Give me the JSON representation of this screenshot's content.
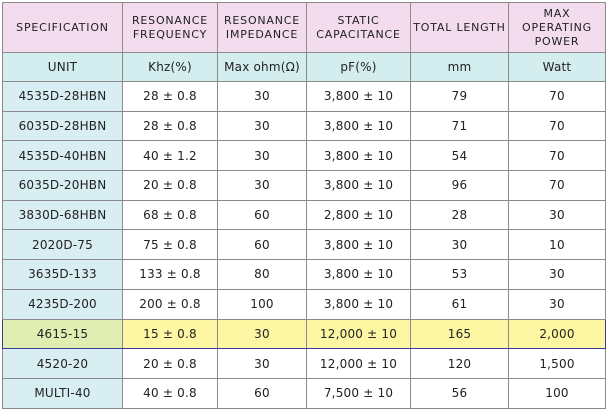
{
  "headers": [
    {
      "lines": [
        "SPECIFICATION"
      ]
    },
    {
      "lines": [
        "RESONANCE",
        "FREQUENCY"
      ]
    },
    {
      "lines": [
        "RESONANCE",
        "IMPEDANCE"
      ]
    },
    {
      "lines": [
        "STATIC",
        "CAPACITANCE"
      ]
    },
    {
      "lines": [
        "TOTAL LENGTH"
      ]
    },
    {
      "lines": [
        "MAX",
        "OPERATING",
        "POWER"
      ]
    }
  ],
  "units": [
    "UNIT",
    "Khz(%)",
    "Max ohm(Ω)",
    "pF(%)",
    "mm",
    "Watt"
  ],
  "rows": [
    [
      "4535D-28HBN",
      "28 ± 0.8",
      "30",
      "3,800 ± 10",
      "79",
      "70"
    ],
    [
      "6035D-28HBN",
      "28 ± 0.8",
      "30",
      "3,800 ± 10",
      "71",
      "70"
    ],
    [
      "4535D-40HBN",
      "40 ± 1.2",
      "30",
      "3,800 ± 10",
      "54",
      "70"
    ],
    [
      "6035D-20HBN",
      "20 ± 0.8",
      "30",
      "3,800 ± 10",
      "96",
      "70"
    ],
    [
      "3830D-68HBN",
      "68 ± 0.8",
      "60",
      "2,800 ± 10",
      "28",
      "30"
    ],
    [
      "2020D-75",
      "75 ± 0.8",
      "60",
      "3,800 ± 10",
      "30",
      "10"
    ],
    [
      "3635D-133",
      "133 ± 0.8",
      "80",
      "3,800 ± 10",
      "53",
      "30"
    ],
    [
      "4235D-200",
      "200 ± 0.8",
      "100",
      "3,800 ± 10",
      "61",
      "30"
    ],
    [
      "4615-15",
      "15 ± 0.8",
      "30",
      "12,000 ± 10",
      "165",
      "2,000"
    ],
    [
      "4520-20",
      "20 ± 0.8",
      "30",
      "12,000 ± 10",
      "120",
      "1,500"
    ],
    [
      "MULTI-40",
      "40 ± 0.8",
      "60",
      "7,500 ± 10",
      "56",
      "100"
    ]
  ],
  "highlight_row": 8,
  "colors": {
    "header_bg": "#f2dcee",
    "unit_bg": "#d4eef0",
    "spec_bg": "#d8eef2",
    "highlight_bg": "#fdf7a3",
    "highlight_border": "#3a3a99",
    "grid": "#8a8a8a"
  }
}
